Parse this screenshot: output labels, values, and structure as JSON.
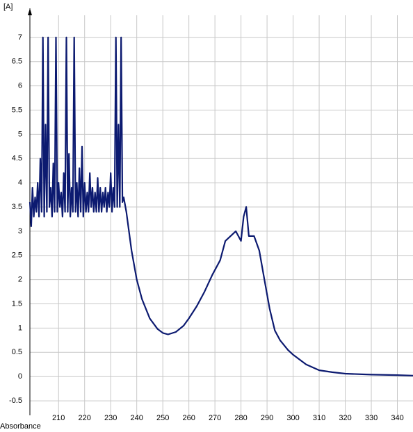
{
  "chart_data": {
    "type": "line",
    "y_label_top": "[A]",
    "x_label_bottom": "Absorbance",
    "xlim": [
      199,
      346
    ],
    "ylim": [
      -0.8,
      7.6
    ],
    "xticks": [
      210,
      220,
      230,
      240,
      250,
      260,
      270,
      280,
      290,
      300,
      310,
      320,
      330,
      340
    ],
    "yticks": [
      -0.5,
      0,
      0.5,
      1,
      1.5,
      2,
      2.5,
      3,
      3.5,
      4,
      4.5,
      5,
      5.5,
      6,
      6.5,
      7
    ],
    "grid": true,
    "series": [
      {
        "color": "#0c1a70",
        "x": [
          199,
          199.5,
          200,
          200.5,
          201,
          201.5,
          202,
          202.5,
          203,
          203.5,
          204,
          204.5,
          205,
          205.5,
          206,
          206.5,
          207,
          207.5,
          208,
          208.5,
          209,
          209.5,
          210,
          210.5,
          211,
          211.5,
          212,
          212.5,
          213,
          213.5,
          214,
          214.5,
          215,
          215.5,
          216,
          216.5,
          217,
          217.5,
          218,
          218.5,
          219,
          219.5,
          220,
          220.5,
          221,
          221.5,
          222,
          222.5,
          223,
          223.5,
          224,
          224.5,
          225,
          225.5,
          226,
          226.5,
          227,
          227.5,
          228,
          228.5,
          229,
          229.5,
          230,
          230.5,
          231,
          231.5,
          232,
          232.5,
          233,
          233.5,
          234,
          234.5,
          235,
          236,
          238,
          240,
          242,
          245,
          248,
          250,
          252,
          255,
          258,
          260,
          263,
          266,
          269,
          272,
          274,
          276,
          278,
          280,
          281,
          282,
          283,
          285,
          287,
          289,
          291,
          293,
          295,
          298,
          300,
          305,
          310,
          315,
          320,
          330,
          340,
          346
        ],
        "values": [
          3.6,
          3.1,
          3.9,
          3.3,
          3.7,
          3.4,
          4.0,
          3.3,
          4.5,
          3.4,
          7.0,
          3.3,
          5.2,
          3.4,
          7.0,
          3.5,
          3.9,
          3.3,
          4.4,
          3.4,
          7.0,
          3.4,
          4.0,
          3.5,
          3.8,
          3.3,
          4.2,
          3.4,
          7.0,
          3.4,
          4.6,
          3.3,
          3.9,
          3.4,
          7.0,
          3.4,
          4.0,
          3.3,
          4.3,
          3.4,
          4.75,
          3.3,
          4.0,
          3.4,
          3.8,
          3.4,
          4.2,
          3.5,
          3.9,
          3.4,
          3.8,
          3.4,
          4.1,
          3.4,
          3.9,
          3.4,
          3.8,
          3.5,
          3.9,
          3.4,
          3.8,
          3.5,
          4.2,
          3.4,
          3.9,
          3.5,
          7.0,
          3.5,
          5.2,
          3.5,
          7.0,
          3.6,
          3.7,
          3.4,
          2.6,
          2.0,
          1.6,
          1.2,
          0.98,
          0.9,
          0.87,
          0.92,
          1.05,
          1.2,
          1.45,
          1.75,
          2.1,
          2.4,
          2.8,
          2.9,
          3.0,
          2.8,
          3.3,
          3.5,
          2.9,
          2.9,
          2.6,
          2.0,
          1.4,
          0.95,
          0.75,
          0.55,
          0.45,
          0.25,
          0.13,
          0.09,
          0.06,
          0.04,
          0.03,
          0.02
        ]
      }
    ]
  }
}
